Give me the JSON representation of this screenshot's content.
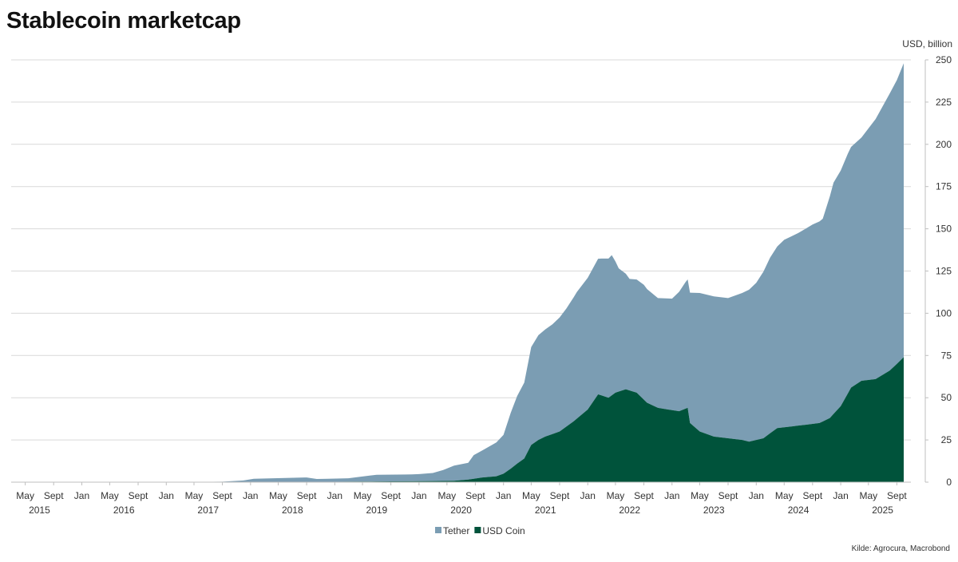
{
  "title": "Stablecoin marketcap",
  "source": "Kilde: Agrocura, Macrobond",
  "chart_data": {
    "type": "area",
    "stacked": true,
    "title": "Stablecoin marketcap",
    "ylabel": "USD, billion",
    "ylim": [
      0,
      250
    ],
    "yticks": [
      0,
      25,
      50,
      75,
      100,
      125,
      150,
      175,
      200,
      225,
      250
    ],
    "grid": true,
    "legend_position": "bottom-center",
    "x_range": [
      "2015-03-01",
      "2025-11-01"
    ],
    "x_ticks": [
      {
        "date": "2015-05-01",
        "label": "May"
      },
      {
        "date": "2015-09-01",
        "label": "Sept"
      },
      {
        "date": "2016-01-01",
        "label": "Jan"
      },
      {
        "date": "2016-05-01",
        "label": "May"
      },
      {
        "date": "2016-09-01",
        "label": "Sept"
      },
      {
        "date": "2017-01-01",
        "label": "Jan"
      },
      {
        "date": "2017-05-01",
        "label": "May"
      },
      {
        "date": "2017-09-01",
        "label": "Sept"
      },
      {
        "date": "2018-01-01",
        "label": "Jan"
      },
      {
        "date": "2018-05-01",
        "label": "May"
      },
      {
        "date": "2018-09-01",
        "label": "Sept"
      },
      {
        "date": "2019-01-01",
        "label": "Jan"
      },
      {
        "date": "2019-05-01",
        "label": "May"
      },
      {
        "date": "2019-09-01",
        "label": "Sept"
      },
      {
        "date": "2020-01-01",
        "label": "Jan"
      },
      {
        "date": "2020-05-01",
        "label": "May"
      },
      {
        "date": "2020-09-01",
        "label": "Sept"
      },
      {
        "date": "2021-01-01",
        "label": "Jan"
      },
      {
        "date": "2021-05-01",
        "label": "May"
      },
      {
        "date": "2021-09-01",
        "label": "Sept"
      },
      {
        "date": "2022-01-01",
        "label": "Jan"
      },
      {
        "date": "2022-05-01",
        "label": "May"
      },
      {
        "date": "2022-09-01",
        "label": "Sept"
      },
      {
        "date": "2023-01-01",
        "label": "Jan"
      },
      {
        "date": "2023-05-01",
        "label": "May"
      },
      {
        "date": "2023-09-01",
        "label": "Sept"
      },
      {
        "date": "2024-01-01",
        "label": "Jan"
      },
      {
        "date": "2024-05-01",
        "label": "May"
      },
      {
        "date": "2024-09-01",
        "label": "Sept"
      },
      {
        "date": "2025-01-01",
        "label": "Jan"
      },
      {
        "date": "2025-05-01",
        "label": "May"
      },
      {
        "date": "2025-09-01",
        "label": "Sept"
      }
    ],
    "year_labels": [
      "2015",
      "2016",
      "2017",
      "2018",
      "2019",
      "2020",
      "2021",
      "2022",
      "2023",
      "2024",
      "2025"
    ],
    "colors": {
      "Tether": "#7b9db3",
      "USD Coin": "#00533b",
      "grid": "#d9d9d9",
      "axis": "#bfbfbf"
    },
    "series": [
      {
        "name": "Tether",
        "points": [
          [
            "2015-03-01",
            0
          ],
          [
            "2017-01-01",
            0
          ],
          [
            "2017-09-01",
            0.3
          ],
          [
            "2017-12-01",
            1.0
          ],
          [
            "2018-01-15",
            2.0
          ],
          [
            "2018-06-01",
            2.5
          ],
          [
            "2018-09-01",
            2.8
          ],
          [
            "2018-10-15",
            1.8
          ],
          [
            "2018-12-01",
            1.8
          ],
          [
            "2019-03-01",
            2.0
          ],
          [
            "2019-05-01",
            3.0
          ],
          [
            "2019-07-01",
            4.0
          ],
          [
            "2019-12-01",
            4.1
          ],
          [
            "2020-01-01",
            4.2
          ],
          [
            "2020-03-01",
            4.8
          ],
          [
            "2020-04-15",
            6.5
          ],
          [
            "2020-06-01",
            9.0
          ],
          [
            "2020-08-01",
            10.0
          ],
          [
            "2020-08-25",
            14.0
          ],
          [
            "2020-10-01",
            16.0
          ],
          [
            "2020-12-01",
            20.0
          ],
          [
            "2021-01-01",
            23.0
          ],
          [
            "2021-02-01",
            33.0
          ],
          [
            "2021-03-01",
            40.0
          ],
          [
            "2021-04-01",
            45.0
          ],
          [
            "2021-05-01",
            58.0
          ],
          [
            "2021-06-01",
            62.0
          ],
          [
            "2021-08-01",
            65.0
          ],
          [
            "2021-10-01",
            70.0
          ],
          [
            "2021-11-15",
            75.0
          ],
          [
            "2022-01-01",
            78.0
          ],
          [
            "2022-03-01",
            81.0
          ],
          [
            "2022-04-15",
            83.0
          ],
          [
            "2022-05-15",
            73.0
          ],
          [
            "2022-07-01",
            66.0
          ],
          [
            "2022-09-01",
            68.0
          ],
          [
            "2022-11-01",
            65.0
          ],
          [
            "2023-01-01",
            66.0
          ],
          [
            "2023-03-01",
            75.0
          ],
          [
            "2023-05-01",
            82.0
          ],
          [
            "2023-07-01",
            83.0
          ],
          [
            "2023-09-01",
            83.0
          ],
          [
            "2023-11-01",
            87.0
          ],
          [
            "2024-01-01",
            93.0
          ],
          [
            "2024-03-01",
            104.0
          ],
          [
            "2024-05-01",
            111.0
          ],
          [
            "2024-07-01",
            114.0
          ],
          [
            "2024-09-01",
            118.0
          ],
          [
            "2024-10-15",
            120.0
          ],
          [
            "2024-12-01",
            137.0
          ],
          [
            "2025-02-01",
            142.0
          ],
          [
            "2025-04-01",
            144.0
          ],
          [
            "2025-06-01",
            154.0
          ],
          [
            "2025-08-01",
            164.0
          ],
          [
            "2025-09-01",
            168.0
          ],
          [
            "2025-10-01",
            174.0
          ]
        ]
      },
      {
        "name": "USD Coin",
        "points": [
          [
            "2015-03-01",
            0
          ],
          [
            "2018-09-01",
            0
          ],
          [
            "2018-12-01",
            0.2
          ],
          [
            "2019-06-01",
            0.4
          ],
          [
            "2019-12-01",
            0.5
          ],
          [
            "2020-06-01",
            0.8
          ],
          [
            "2020-08-01",
            1.5
          ],
          [
            "2020-10-01",
            2.8
          ],
          [
            "2020-12-01",
            3.5
          ],
          [
            "2021-01-01",
            5.0
          ],
          [
            "2021-02-01",
            8.0
          ],
          [
            "2021-03-01",
            11.0
          ],
          [
            "2021-04-01",
            14.0
          ],
          [
            "2021-05-01",
            22.0
          ],
          [
            "2021-06-01",
            25.0
          ],
          [
            "2021-07-01",
            27.0
          ],
          [
            "2021-09-01",
            30.0
          ],
          [
            "2021-11-01",
            36.0
          ],
          [
            "2022-01-01",
            43.0
          ],
          [
            "2022-02-15",
            52.0
          ],
          [
            "2022-04-01",
            50.0
          ],
          [
            "2022-05-01",
            53.0
          ],
          [
            "2022-06-15",
            55.0
          ],
          [
            "2022-08-01",
            53.0
          ],
          [
            "2022-09-15",
            47.0
          ],
          [
            "2022-11-01",
            44.0
          ],
          [
            "2022-12-15",
            43.0
          ],
          [
            "2023-02-01",
            42.0
          ],
          [
            "2023-03-10",
            44.0
          ],
          [
            "2023-03-20",
            35.0
          ],
          [
            "2023-05-01",
            30.0
          ],
          [
            "2023-07-01",
            27.0
          ],
          [
            "2023-09-01",
            26.0
          ],
          [
            "2023-11-01",
            25.0
          ],
          [
            "2023-12-01",
            24.0
          ],
          [
            "2024-02-01",
            26.0
          ],
          [
            "2024-04-01",
            32.0
          ],
          [
            "2024-06-01",
            33.0
          ],
          [
            "2024-08-01",
            34.0
          ],
          [
            "2024-10-01",
            35.0
          ],
          [
            "2024-11-15",
            38.0
          ],
          [
            "2025-01-01",
            45.0
          ],
          [
            "2025-02-15",
            56.0
          ],
          [
            "2025-04-01",
            60.0
          ],
          [
            "2025-06-01",
            61.0
          ],
          [
            "2025-08-01",
            66.0
          ],
          [
            "2025-09-01",
            70.0
          ],
          [
            "2025-10-01",
            74.0
          ]
        ]
      }
    ]
  }
}
